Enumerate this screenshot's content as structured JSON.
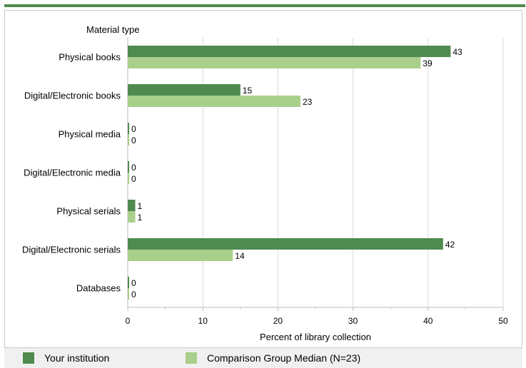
{
  "chart_data": {
    "type": "bar",
    "orientation": "horizontal",
    "title": "",
    "category_axis_title": "Material type",
    "xlabel": "Percent of library collection",
    "xlim": [
      0,
      50
    ],
    "xticks": [
      "0",
      "10",
      "20",
      "30",
      "40",
      "50"
    ],
    "grid": true,
    "legend_position": "bottom",
    "categories": [
      "Physical books",
      "Digital/Electronic books",
      "Physical media",
      "Digital/Electronic media",
      "Physical serials",
      "Digital/Electronic serials",
      "Databases"
    ],
    "series": [
      {
        "name": "Your institution",
        "color": "#4f8a4f",
        "values": [
          43,
          15,
          0,
          0,
          1,
          42,
          0
        ]
      },
      {
        "name": "Comparison Group Median (N=23)",
        "color": "#a9cf8a",
        "values": [
          39,
          23,
          0,
          0,
          1,
          14,
          0
        ]
      }
    ]
  }
}
